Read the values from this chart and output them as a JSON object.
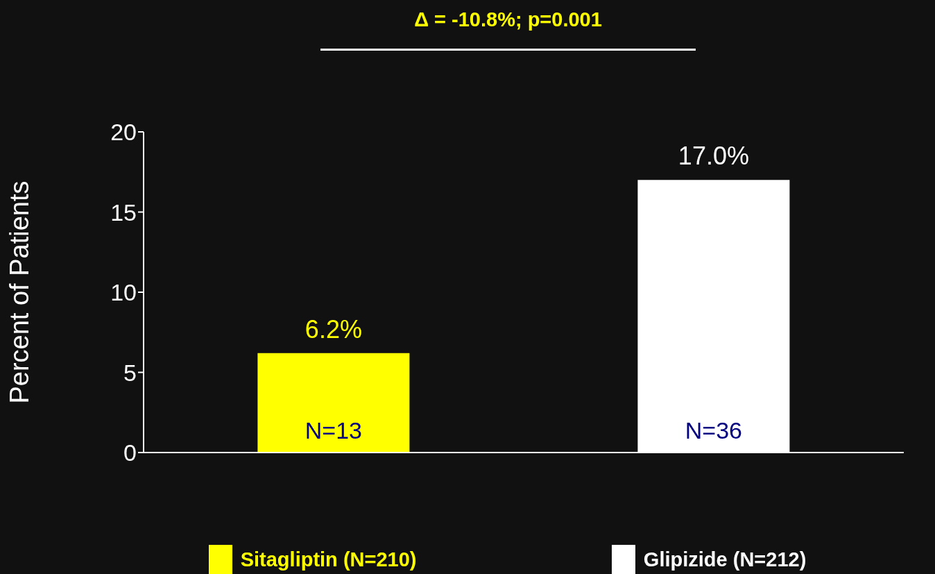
{
  "chart_data": {
    "type": "bar",
    "categories": [
      null,
      null
    ],
    "series": [
      {
        "name": "Sitagliptin (N=210)",
        "color": "#ffff00",
        "values": [
          6.2,
          null
        ],
        "value_labels": [
          "6.2%",
          null
        ]
      },
      {
        "name": "Glipizide (N=212)",
        "color": "#ffffff",
        "values": [
          null,
          17.0
        ],
        "value_labels": [
          null,
          "17.0%"
        ]
      }
    ],
    "stacked": true,
    "ylabel": "Percent of Patients",
    "ylim": [
      0,
      20
    ],
    "yticks": [
      0,
      5,
      10,
      15,
      20
    ],
    "annotations": [
      "Δ = -10.8%; p=0.001",
      "N=13",
      "N=36"
    ],
    "grid": false,
    "legend": "bottom"
  }
}
